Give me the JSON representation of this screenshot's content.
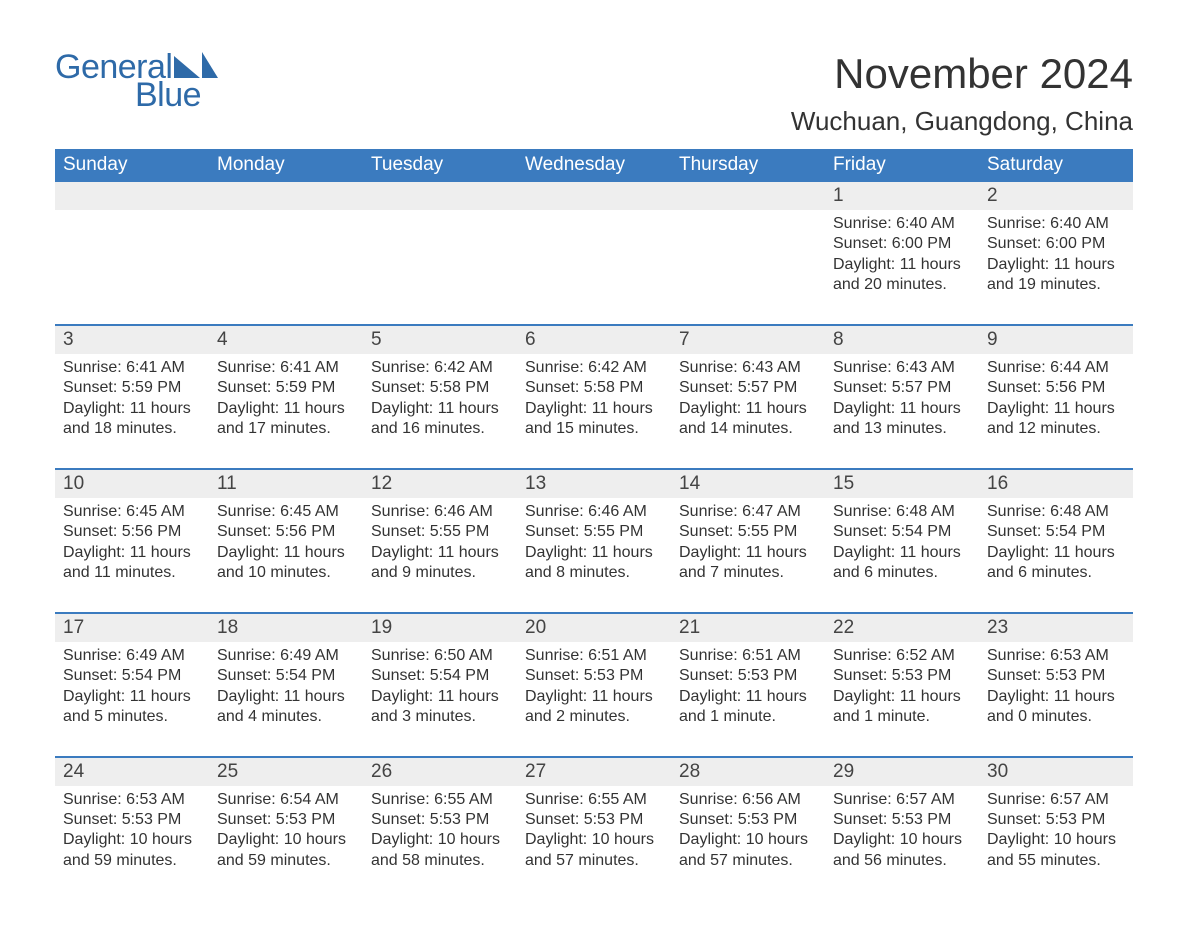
{
  "logo": {
    "text1": "General",
    "text2": "Blue",
    "sail_color": "#2e6aa8"
  },
  "title": "November 2024",
  "location": "Wuchuan, Guangdong, China",
  "colors": {
    "header_bg": "#3b7bbf",
    "header_text": "#ffffff",
    "daynum_bg": "#eeeeee",
    "week_border": "#3b7bbf",
    "text": "#333333",
    "logo": "#2e6aa8"
  },
  "weekdays": [
    "Sunday",
    "Monday",
    "Tuesday",
    "Wednesday",
    "Thursday",
    "Friday",
    "Saturday"
  ],
  "weeks": [
    [
      {
        "num": "",
        "sunrise": "",
        "sunset": "",
        "daylight": ""
      },
      {
        "num": "",
        "sunrise": "",
        "sunset": "",
        "daylight": ""
      },
      {
        "num": "",
        "sunrise": "",
        "sunset": "",
        "daylight": ""
      },
      {
        "num": "",
        "sunrise": "",
        "sunset": "",
        "daylight": ""
      },
      {
        "num": "",
        "sunrise": "",
        "sunset": "",
        "daylight": ""
      },
      {
        "num": "1",
        "sunrise": "Sunrise: 6:40 AM",
        "sunset": "Sunset: 6:00 PM",
        "daylight": "Daylight: 11 hours and 20 minutes."
      },
      {
        "num": "2",
        "sunrise": "Sunrise: 6:40 AM",
        "sunset": "Sunset: 6:00 PM",
        "daylight": "Daylight: 11 hours and 19 minutes."
      }
    ],
    [
      {
        "num": "3",
        "sunrise": "Sunrise: 6:41 AM",
        "sunset": "Sunset: 5:59 PM",
        "daylight": "Daylight: 11 hours and 18 minutes."
      },
      {
        "num": "4",
        "sunrise": "Sunrise: 6:41 AM",
        "sunset": "Sunset: 5:59 PM",
        "daylight": "Daylight: 11 hours and 17 minutes."
      },
      {
        "num": "5",
        "sunrise": "Sunrise: 6:42 AM",
        "sunset": "Sunset: 5:58 PM",
        "daylight": "Daylight: 11 hours and 16 minutes."
      },
      {
        "num": "6",
        "sunrise": "Sunrise: 6:42 AM",
        "sunset": "Sunset: 5:58 PM",
        "daylight": "Daylight: 11 hours and 15 minutes."
      },
      {
        "num": "7",
        "sunrise": "Sunrise: 6:43 AM",
        "sunset": "Sunset: 5:57 PM",
        "daylight": "Daylight: 11 hours and 14 minutes."
      },
      {
        "num": "8",
        "sunrise": "Sunrise: 6:43 AM",
        "sunset": "Sunset: 5:57 PM",
        "daylight": "Daylight: 11 hours and 13 minutes."
      },
      {
        "num": "9",
        "sunrise": "Sunrise: 6:44 AM",
        "sunset": "Sunset: 5:56 PM",
        "daylight": "Daylight: 11 hours and 12 minutes."
      }
    ],
    [
      {
        "num": "10",
        "sunrise": "Sunrise: 6:45 AM",
        "sunset": "Sunset: 5:56 PM",
        "daylight": "Daylight: 11 hours and 11 minutes."
      },
      {
        "num": "11",
        "sunrise": "Sunrise: 6:45 AM",
        "sunset": "Sunset: 5:56 PM",
        "daylight": "Daylight: 11 hours and 10 minutes."
      },
      {
        "num": "12",
        "sunrise": "Sunrise: 6:46 AM",
        "sunset": "Sunset: 5:55 PM",
        "daylight": "Daylight: 11 hours and 9 minutes."
      },
      {
        "num": "13",
        "sunrise": "Sunrise: 6:46 AM",
        "sunset": "Sunset: 5:55 PM",
        "daylight": "Daylight: 11 hours and 8 minutes."
      },
      {
        "num": "14",
        "sunrise": "Sunrise: 6:47 AM",
        "sunset": "Sunset: 5:55 PM",
        "daylight": "Daylight: 11 hours and 7 minutes."
      },
      {
        "num": "15",
        "sunrise": "Sunrise: 6:48 AM",
        "sunset": "Sunset: 5:54 PM",
        "daylight": "Daylight: 11 hours and 6 minutes."
      },
      {
        "num": "16",
        "sunrise": "Sunrise: 6:48 AM",
        "sunset": "Sunset: 5:54 PM",
        "daylight": "Daylight: 11 hours and 6 minutes."
      }
    ],
    [
      {
        "num": "17",
        "sunrise": "Sunrise: 6:49 AM",
        "sunset": "Sunset: 5:54 PM",
        "daylight": "Daylight: 11 hours and 5 minutes."
      },
      {
        "num": "18",
        "sunrise": "Sunrise: 6:49 AM",
        "sunset": "Sunset: 5:54 PM",
        "daylight": "Daylight: 11 hours and 4 minutes."
      },
      {
        "num": "19",
        "sunrise": "Sunrise: 6:50 AM",
        "sunset": "Sunset: 5:54 PM",
        "daylight": "Daylight: 11 hours and 3 minutes."
      },
      {
        "num": "20",
        "sunrise": "Sunrise: 6:51 AM",
        "sunset": "Sunset: 5:53 PM",
        "daylight": "Daylight: 11 hours and 2 minutes."
      },
      {
        "num": "21",
        "sunrise": "Sunrise: 6:51 AM",
        "sunset": "Sunset: 5:53 PM",
        "daylight": "Daylight: 11 hours and 1 minute."
      },
      {
        "num": "22",
        "sunrise": "Sunrise: 6:52 AM",
        "sunset": "Sunset: 5:53 PM",
        "daylight": "Daylight: 11 hours and 1 minute."
      },
      {
        "num": "23",
        "sunrise": "Sunrise: 6:53 AM",
        "sunset": "Sunset: 5:53 PM",
        "daylight": "Daylight: 11 hours and 0 minutes."
      }
    ],
    [
      {
        "num": "24",
        "sunrise": "Sunrise: 6:53 AM",
        "sunset": "Sunset: 5:53 PM",
        "daylight": "Daylight: 10 hours and 59 minutes."
      },
      {
        "num": "25",
        "sunrise": "Sunrise: 6:54 AM",
        "sunset": "Sunset: 5:53 PM",
        "daylight": "Daylight: 10 hours and 59 minutes."
      },
      {
        "num": "26",
        "sunrise": "Sunrise: 6:55 AM",
        "sunset": "Sunset: 5:53 PM",
        "daylight": "Daylight: 10 hours and 58 minutes."
      },
      {
        "num": "27",
        "sunrise": "Sunrise: 6:55 AM",
        "sunset": "Sunset: 5:53 PM",
        "daylight": "Daylight: 10 hours and 57 minutes."
      },
      {
        "num": "28",
        "sunrise": "Sunrise: 6:56 AM",
        "sunset": "Sunset: 5:53 PM",
        "daylight": "Daylight: 10 hours and 57 minutes."
      },
      {
        "num": "29",
        "sunrise": "Sunrise: 6:57 AM",
        "sunset": "Sunset: 5:53 PM",
        "daylight": "Daylight: 10 hours and 56 minutes."
      },
      {
        "num": "30",
        "sunrise": "Sunrise: 6:57 AM",
        "sunset": "Sunset: 5:53 PM",
        "daylight": "Daylight: 10 hours and 55 minutes."
      }
    ]
  ]
}
